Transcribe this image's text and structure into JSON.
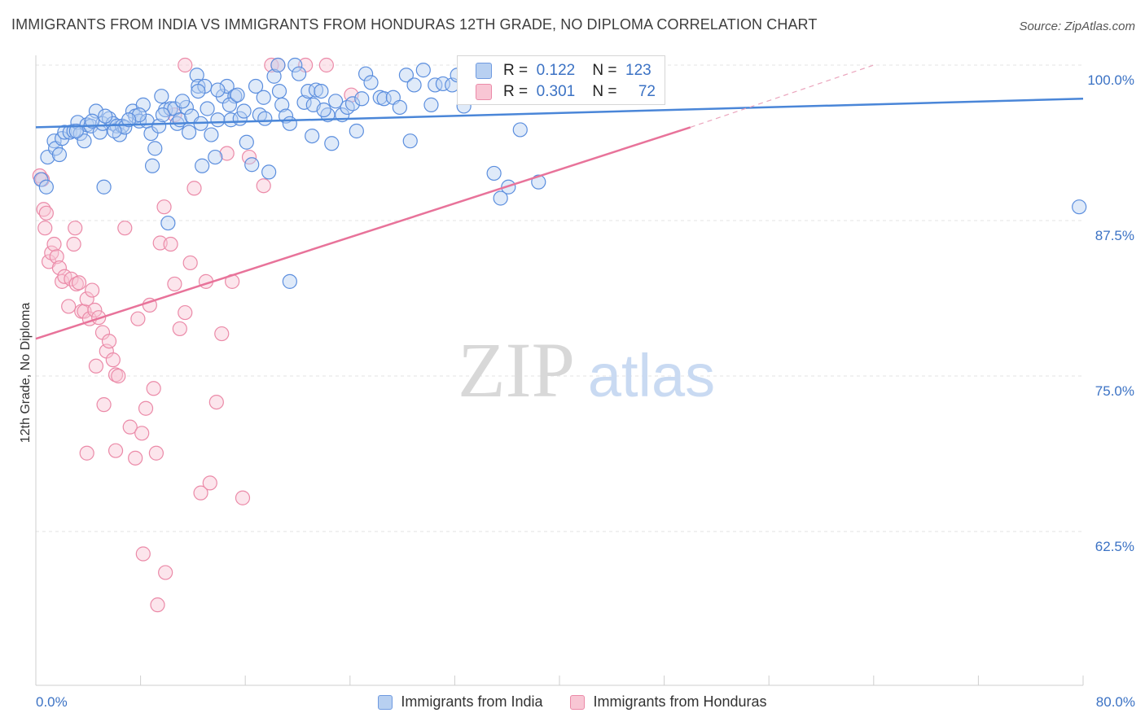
{
  "title": "IMMIGRANTS FROM INDIA VS IMMIGRANTS FROM HONDURAS 12TH GRADE, NO DIPLOMA CORRELATION CHART",
  "source": "Source: ZipAtlas.com",
  "watermark": {
    "zip": "ZIP",
    "atlas": "atlas"
  },
  "stats": [
    {
      "r_label": "R =",
      "r_value": "0.122",
      "n_label": "N =",
      "n_value": "123",
      "color": "#6f9ae0"
    },
    {
      "r_label": "R =",
      "r_value": "0.301",
      "n_label": "N =",
      "n_value": "72",
      "color": "#eb8aa8"
    }
  ],
  "legend": [
    "Immigrants from India",
    "Immigrants from Honduras"
  ],
  "chart_data": {
    "type": "scatter",
    "title": "IMMIGRANTS FROM INDIA VS IMMIGRANTS FROM HONDURAS 12TH GRADE, NO DIPLOMA CORRELATION CHART",
    "xlabel": "",
    "ylabel": "12th Grade, No Diploma",
    "xlim": [
      0,
      80
    ],
    "ylim": [
      50,
      102
    ],
    "x_tick_labels": {
      "left": "0.0%",
      "right": "80.0%"
    },
    "y_ticks": [
      100.0,
      87.5,
      75.0,
      62.5
    ],
    "y_tick_labels": [
      "100.0%",
      "87.5%",
      "75.0%",
      "62.5%"
    ],
    "colors": {
      "india": "#4a86d8",
      "honduras": "#e8739a"
    },
    "series": [
      {
        "name": "Immigrants from India",
        "trendline": {
          "x0": 0,
          "y0": 95.0,
          "x1": 80,
          "y1": 97.3
        },
        "points": [
          [
            0.4,
            90.8
          ],
          [
            0.8,
            90.2
          ],
          [
            0.9,
            92.6
          ],
          [
            1.4,
            93.9
          ],
          [
            1.5,
            93.3
          ],
          [
            1.8,
            92.8
          ],
          [
            2.0,
            94.1
          ],
          [
            2.2,
            94.6
          ],
          [
            2.6,
            94.6
          ],
          [
            2.9,
            94.7
          ],
          [
            3.2,
            95.4
          ],
          [
            3.4,
            94.5
          ],
          [
            3.7,
            93.9
          ],
          [
            3.9,
            95.2
          ],
          [
            4.2,
            95.1
          ],
          [
            4.6,
            96.3
          ],
          [
            4.9,
            94.6
          ],
          [
            5.1,
            95.3
          ],
          [
            5.2,
            90.2
          ],
          [
            5.6,
            95.7
          ],
          [
            5.9,
            95.3
          ],
          [
            6.2,
            95.1
          ],
          [
            6.4,
            94.4
          ],
          [
            6.6,
            95.1
          ],
          [
            6.8,
            95.0
          ],
          [
            7.4,
            96.3
          ],
          [
            7.6,
            95.9
          ],
          [
            7.9,
            95.5
          ],
          [
            8.2,
            96.8
          ],
          [
            8.5,
            95.5
          ],
          [
            8.8,
            94.5
          ],
          [
            9.1,
            93.3
          ],
          [
            9.4,
            95.1
          ],
          [
            9.6,
            97.5
          ],
          [
            9.9,
            96.4
          ],
          [
            10.3,
            96.5
          ],
          [
            10.6,
            96.5
          ],
          [
            10.8,
            95.3
          ],
          [
            11.0,
            95.6
          ],
          [
            11.5,
            96.6
          ],
          [
            11.7,
            94.6
          ],
          [
            11.9,
            95.9
          ],
          [
            12.3,
            99.2
          ],
          [
            12.4,
            98.3
          ],
          [
            12.6,
            95.3
          ],
          [
            12.9,
            98.3
          ],
          [
            13.1,
            96.5
          ],
          [
            13.4,
            94.4
          ],
          [
            13.7,
            92.6
          ],
          [
            13.9,
            95.6
          ],
          [
            14.3,
            97.5
          ],
          [
            14.6,
            98.3
          ],
          [
            14.9,
            95.6
          ],
          [
            15.2,
            97.5
          ],
          [
            15.6,
            95.7
          ],
          [
            15.9,
            96.3
          ],
          [
            16.1,
            93.8
          ],
          [
            16.5,
            92.0
          ],
          [
            16.8,
            98.3
          ],
          [
            17.1,
            96.0
          ],
          [
            17.5,
            95.7
          ],
          [
            17.8,
            91.4
          ],
          [
            18.2,
            99.1
          ],
          [
            18.5,
            100.0
          ],
          [
            18.8,
            96.8
          ],
          [
            19.1,
            95.9
          ],
          [
            19.4,
            95.3
          ],
          [
            19.8,
            100.0
          ],
          [
            20.1,
            99.3
          ],
          [
            20.5,
            97.0
          ],
          [
            20.8,
            97.9
          ],
          [
            21.1,
            94.3
          ],
          [
            21.4,
            98.0
          ],
          [
            21.8,
            97.9
          ],
          [
            22.3,
            96.0
          ],
          [
            22.6,
            93.7
          ],
          [
            22.9,
            97.1
          ],
          [
            23.4,
            96.0
          ],
          [
            23.8,
            96.6
          ],
          [
            24.2,
            96.9
          ],
          [
            24.5,
            94.7
          ],
          [
            24.9,
            97.3
          ],
          [
            25.2,
            99.3
          ],
          [
            25.6,
            98.6
          ],
          [
            26.3,
            97.4
          ],
          [
            26.6,
            97.3
          ],
          [
            27.3,
            97.4
          ],
          [
            27.8,
            96.6
          ],
          [
            28.3,
            99.2
          ],
          [
            28.6,
            93.9
          ],
          [
            28.9,
            98.4
          ],
          [
            29.6,
            99.6
          ],
          [
            30.2,
            96.8
          ],
          [
            30.5,
            98.4
          ],
          [
            31.1,
            98.5
          ],
          [
            31.8,
            98.4
          ],
          [
            32.2,
            99.2
          ],
          [
            32.7,
            96.7
          ],
          [
            33.3,
            99.4
          ],
          [
            34.4,
            99.2
          ],
          [
            35.0,
            91.3
          ],
          [
            35.5,
            89.3
          ],
          [
            36.1,
            90.2
          ],
          [
            37.0,
            94.8
          ],
          [
            38.4,
            90.6
          ],
          [
            79.7,
            88.6
          ],
          [
            6.0,
            94.7
          ],
          [
            7.9,
            96.0
          ],
          [
            8.9,
            91.9
          ],
          [
            10.1,
            87.3
          ],
          [
            12.7,
            91.9
          ],
          [
            14.8,
            96.8
          ],
          [
            15.4,
            97.6
          ],
          [
            19.4,
            82.6
          ],
          [
            21.2,
            96.8
          ],
          [
            22.0,
            96.4
          ],
          [
            18.6,
            97.9
          ],
          [
            12.4,
            97.9
          ],
          [
            9.7,
            96.0
          ],
          [
            11.2,
            97.1
          ],
          [
            13.9,
            98.0
          ],
          [
            17.4,
            97.4
          ],
          [
            7.1,
            95.6
          ],
          [
            5.3,
            95.9
          ],
          [
            4.3,
            95.5
          ],
          [
            3.1,
            94.7
          ]
        ]
      },
      {
        "name": "Immigrants from Honduras",
        "trendline": {
          "x0": 0,
          "y0": 78.0,
          "x1": 50,
          "y1": 95.0,
          "extends_dashed_to": [
            64,
            100.0
          ]
        },
        "points": [
          [
            0.3,
            91.1
          ],
          [
            0.5,
            90.8
          ],
          [
            0.6,
            88.4
          ],
          [
            0.7,
            86.9
          ],
          [
            0.8,
            88.1
          ],
          [
            1.0,
            84.2
          ],
          [
            1.2,
            84.9
          ],
          [
            1.4,
            85.6
          ],
          [
            1.6,
            84.6
          ],
          [
            1.8,
            83.7
          ],
          [
            2.0,
            82.6
          ],
          [
            2.2,
            83.0
          ],
          [
            2.5,
            80.6
          ],
          [
            2.7,
            82.8
          ],
          [
            2.9,
            85.6
          ],
          [
            3.0,
            86.9
          ],
          [
            3.1,
            82.4
          ],
          [
            3.3,
            82.5
          ],
          [
            3.5,
            80.2
          ],
          [
            3.7,
            80.2
          ],
          [
            3.9,
            81.2
          ],
          [
            4.1,
            79.6
          ],
          [
            4.3,
            81.9
          ],
          [
            4.5,
            80.3
          ],
          [
            4.8,
            79.7
          ],
          [
            5.1,
            78.5
          ],
          [
            5.4,
            77.0
          ],
          [
            5.6,
            77.8
          ],
          [
            5.9,
            76.3
          ],
          [
            6.1,
            75.1
          ],
          [
            6.3,
            75.0
          ],
          [
            4.6,
            75.8
          ],
          [
            5.2,
            72.7
          ],
          [
            6.8,
            86.9
          ],
          [
            7.2,
            70.9
          ],
          [
            7.6,
            68.4
          ],
          [
            7.8,
            79.6
          ],
          [
            8.1,
            70.4
          ],
          [
            8.4,
            72.4
          ],
          [
            8.7,
            80.7
          ],
          [
            9.0,
            74.0
          ],
          [
            9.2,
            68.8
          ],
          [
            9.5,
            85.7
          ],
          [
            9.8,
            88.6
          ],
          [
            10.3,
            85.6
          ],
          [
            10.6,
            82.4
          ],
          [
            11.0,
            78.8
          ],
          [
            11.4,
            80.1
          ],
          [
            11.8,
            84.1
          ],
          [
            12.1,
            90.1
          ],
          [
            12.6,
            65.6
          ],
          [
            13.0,
            82.6
          ],
          [
            13.3,
            66.4
          ],
          [
            13.8,
            72.9
          ],
          [
            14.2,
            78.4
          ],
          [
            14.6,
            92.9
          ],
          [
            15.0,
            82.6
          ],
          [
            15.8,
            65.2
          ],
          [
            16.3,
            92.6
          ],
          [
            17.4,
            90.3
          ],
          [
            18.0,
            100.0
          ],
          [
            18.5,
            100.0
          ],
          [
            20.6,
            100.0
          ],
          [
            22.2,
            100.0
          ],
          [
            24.1,
            97.6
          ],
          [
            8.2,
            60.7
          ],
          [
            9.9,
            59.2
          ],
          [
            9.3,
            56.6
          ],
          [
            10.6,
            96.0
          ],
          [
            11.4,
            100.0
          ],
          [
            3.9,
            68.8
          ],
          [
            6.1,
            69.0
          ]
        ]
      }
    ]
  }
}
